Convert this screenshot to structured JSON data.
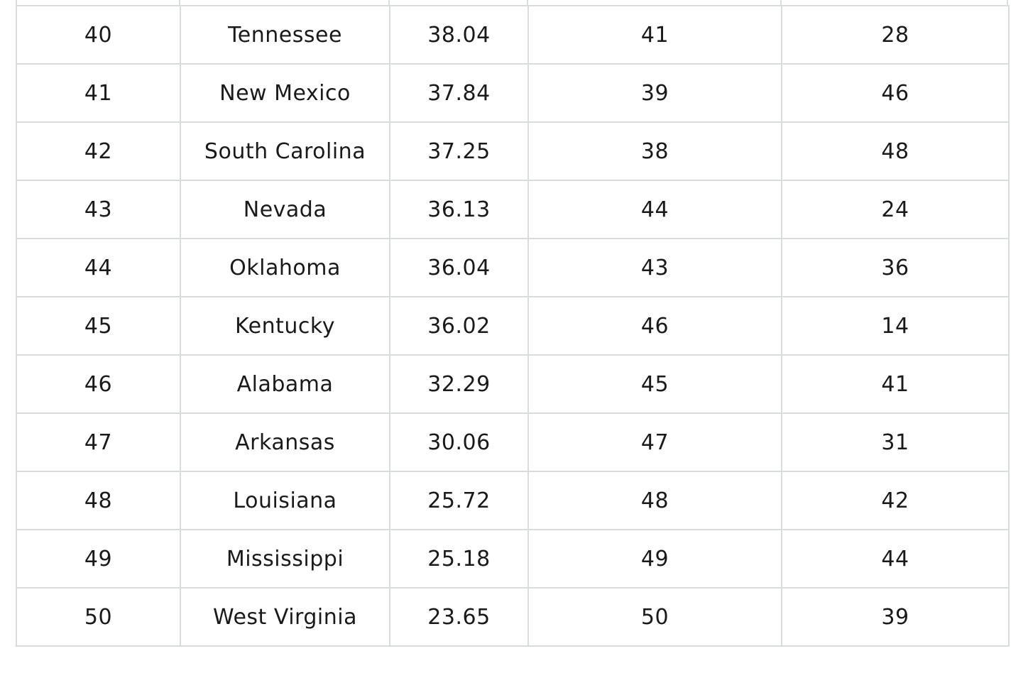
{
  "table": {
    "rows": [
      [
        40,
        "Tennessee",
        38.04,
        41,
        28
      ],
      [
        41,
        "New Mexico",
        37.84,
        39,
        46
      ],
      [
        42,
        "South Carolina",
        37.25,
        38,
        48
      ],
      [
        43,
        "Nevada",
        36.13,
        44,
        24
      ],
      [
        44,
        "Oklahoma",
        36.04,
        43,
        36
      ],
      [
        45,
        "Kentucky",
        36.02,
        46,
        14
      ],
      [
        46,
        "Alabama",
        32.29,
        45,
        41
      ],
      [
        47,
        "Arkansas",
        30.06,
        47,
        31
      ],
      [
        48,
        "Louisiana",
        25.72,
        48,
        42
      ],
      [
        49,
        "Mississippi",
        25.18,
        49,
        44
      ],
      [
        50,
        "West Virginia",
        23.65,
        50,
        39
      ]
    ]
  }
}
